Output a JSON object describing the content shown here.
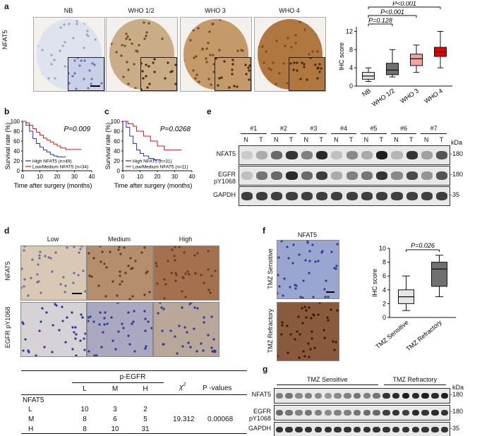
{
  "panel_a": {
    "label": "a",
    "row_label": "NFAT5",
    "columns": [
      "NB",
      "WHO 1/2",
      "WHO 3",
      "WHO 4"
    ],
    "stain_colors": [
      "#dfe3ee",
      "#c9ad86",
      "#c49a6a",
      "#b07840"
    ],
    "chart": {
      "type": "box",
      "ylabel": "IHC score",
      "yticks": [
        "0",
        "4",
        "8",
        "12"
      ],
      "ylim": [
        0,
        13
      ],
      "categories": [
        "NB",
        "WHO 1/2",
        "WHO 3",
        "WHO 4"
      ],
      "colors": [
        "#e6e6e6",
        "#707070",
        "#f4a3a3",
        "#e00000"
      ],
      "boxes": [
        {
          "min": 1,
          "q1": 1.5,
          "median": 2.2,
          "q3": 3,
          "max": 4
        },
        {
          "min": 2,
          "q1": 2.5,
          "median": 3.5,
          "q3": 5,
          "max": 8
        },
        {
          "min": 3,
          "q1": 4.5,
          "median": 6,
          "q3": 7,
          "max": 9
        },
        {
          "min": 4,
          "q1": 6.5,
          "median": 7.5,
          "q3": 8.5,
          "max": 12
        }
      ],
      "annotations": [
        "P<0.001",
        "P<0.001",
        "P=0.128"
      ]
    }
  },
  "panel_b": {
    "label": "b",
    "ylabel": "Survival rate (%)",
    "xlabel": "Time after surgery (months)",
    "pvalue": "P=0.009",
    "yticks": [
      "0",
      "20",
      "40",
      "60",
      "80",
      "100"
    ],
    "xticks": [
      "0",
      "10",
      "20",
      "30",
      "40"
    ],
    "legend": [
      "High NFAT5 (n=49)",
      "Low/Medium NFAT5 (n=34)"
    ],
    "series": [
      {
        "color": "#1e2fd0",
        "points": [
          [
            0,
            100
          ],
          [
            2,
            92
          ],
          [
            4,
            80
          ],
          [
            6,
            65
          ],
          [
            8,
            55
          ],
          [
            10,
            48
          ],
          [
            12,
            42
          ],
          [
            14,
            38
          ],
          [
            16,
            33
          ],
          [
            18,
            30
          ],
          [
            20,
            28
          ],
          [
            25,
            28
          ]
        ]
      },
      {
        "color": "#e01010",
        "points": [
          [
            0,
            100
          ],
          [
            2,
            97
          ],
          [
            4,
            92
          ],
          [
            6,
            85
          ],
          [
            8,
            78
          ],
          [
            10,
            72
          ],
          [
            12,
            66
          ],
          [
            14,
            62
          ],
          [
            16,
            58
          ],
          [
            18,
            54
          ],
          [
            20,
            50
          ],
          [
            22,
            46
          ],
          [
            25,
            43
          ],
          [
            30,
            43
          ],
          [
            34,
            43
          ]
        ]
      }
    ]
  },
  "panel_c": {
    "label": "c",
    "ylabel": "Survival rate (%)",
    "xlabel": "Time after surgery (months)",
    "pvalue": "P=0.0268",
    "yticks": [
      "0",
      "20",
      "40",
      "60",
      "80",
      "100"
    ],
    "xticks": [
      "0",
      "10",
      "20",
      "30",
      "40"
    ],
    "legend": [
      "High NFAT5 (n=31)",
      "Low/Medium NFAT5 (n=11)"
    ],
    "series": [
      {
        "color": "#1e2fd0",
        "points": [
          [
            0,
            100
          ],
          [
            2,
            88
          ],
          [
            4,
            70
          ],
          [
            6,
            55
          ],
          [
            8,
            42
          ],
          [
            10,
            35
          ],
          [
            12,
            30
          ],
          [
            15,
            25
          ],
          [
            18,
            22
          ],
          [
            22,
            22
          ]
        ]
      },
      {
        "color": "#e01010",
        "points": [
          [
            0,
            100
          ],
          [
            3,
            95
          ],
          [
            6,
            90
          ],
          [
            8,
            80
          ],
          [
            12,
            70
          ],
          [
            16,
            60
          ],
          [
            20,
            50
          ],
          [
            24,
            42
          ],
          [
            34,
            42
          ]
        ]
      }
    ]
  },
  "panel_e": {
    "label": "e",
    "samples": [
      "#1",
      "#2",
      "#3",
      "#4",
      "#5",
      "#6",
      "#7"
    ],
    "lane_labels": [
      "N",
      "T"
    ],
    "rows": [
      {
        "name": "NFAT5",
        "kda": "180",
        "intensity": [
          0.15,
          0.3,
          0.6,
          0.85,
          0.5,
          0.9,
          0.2,
          0.45,
          0.3,
          0.95,
          0.25,
          0.85,
          0.35,
          0.7
        ]
      },
      {
        "name": "EGFR pY1068",
        "kda": "180",
        "intensity": [
          0.2,
          0.55,
          0.6,
          0.9,
          0.6,
          0.8,
          0.3,
          0.5,
          0.55,
          0.85,
          0.45,
          0.75,
          0.4,
          0.7
        ]
      },
      {
        "name": "GAPDH",
        "kda": "35",
        "intensity": [
          0.8,
          0.8,
          0.8,
          0.8,
          0.8,
          0.8,
          0.8,
          0.8,
          0.8,
          0.8,
          0.8,
          0.8,
          0.8,
          0.8
        ]
      }
    ],
    "kda_label": "kDa"
  },
  "panel_d": {
    "label": "d",
    "columns": [
      "Low",
      "Medium",
      "High"
    ],
    "rows": [
      "NFAT5",
      "EGFR pY1068"
    ],
    "colors": [
      [
        "#d9c8b3",
        "#b58e6e",
        "#a5704d"
      ],
      [
        "#d7d2d6",
        "#a9a8c0",
        "#b9a79a"
      ]
    ],
    "table": {
      "header_group": "p-EGFR",
      "header_cols": [
        "L",
        "M",
        "H"
      ],
      "chi": "χ",
      "chi_sup": "2",
      "pvalues_label": "P -values",
      "row_group": "NFAT5",
      "rows": [
        {
          "label": "L",
          "values": [
            "10",
            "3",
            "2"
          ]
        },
        {
          "label": "M",
          "values": [
            "8",
            "6",
            "5"
          ]
        },
        {
          "label": "H",
          "values": [
            "8",
            "10",
            "31"
          ]
        }
      ],
      "chi_value": "19.312",
      "p_value": "0.00068"
    }
  },
  "panel_f": {
    "label": "f",
    "title": "NFAT5",
    "row_labels": [
      "TMZ Sensitive",
      "TMZ Refractory"
    ],
    "colors": [
      "#9aa6d0",
      "#8a5a3c"
    ],
    "chart": {
      "type": "box",
      "ylabel": "IHC score",
      "yticks": [
        "0",
        "2",
        "4",
        "6",
        "8",
        "10"
      ],
      "ylim": [
        0,
        10
      ],
      "categories": [
        "TMZ Sensitive",
        "TMZ Refractory"
      ],
      "colors": [
        "#e6e6e6",
        "#707070"
      ],
      "boxes": [
        {
          "min": 1,
          "q1": 2,
          "median": 3,
          "q3": 4,
          "max": 6
        },
        {
          "min": 3,
          "q1": 4.5,
          "median": 7,
          "q3": 8,
          "max": 9
        }
      ],
      "annotation": "P=0.026"
    }
  },
  "panel_g": {
    "label": "g",
    "groups": [
      "TMZ Sensitive",
      "TMZ Refractory"
    ],
    "kda_label": "kDa",
    "rows": [
      {
        "name": "NFAT5",
        "kda": "180",
        "intensity": [
          0.5,
          0.55,
          0.45,
          0.5,
          0.45,
          0.4,
          0.45,
          0.5,
          0.55,
          0.5,
          0.55,
          0.85,
          0.9,
          0.95,
          0.9,
          0.95,
          0.9,
          0.95
        ]
      },
      {
        "name": "EGFR pY1068",
        "kda": "180",
        "intensity": [
          0.6,
          0.55,
          0.5,
          0.55,
          0.5,
          0.45,
          0.5,
          0.5,
          0.55,
          0.6,
          0.6,
          0.8,
          0.85,
          0.8,
          0.9,
          0.85,
          0.9,
          0.85
        ]
      },
      {
        "name": "GAPDH",
        "kda": "35",
        "intensity": [
          0.85,
          0.85,
          0.85,
          0.85,
          0.85,
          0.85,
          0.85,
          0.85,
          0.85,
          0.85,
          0.85,
          0.85,
          0.85,
          0.85,
          0.85,
          0.85,
          0.85,
          0.85
        ]
      }
    ]
  }
}
